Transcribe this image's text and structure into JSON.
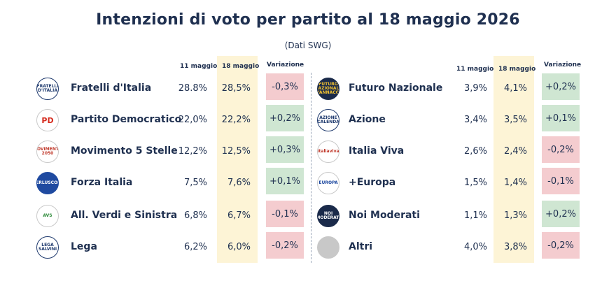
{
  "chart_data": {
    "type": "table",
    "title": "Intenzioni di voto per partito al 18 maggio 2026",
    "subtitle": "(Dati SWG)",
    "columns": [
      "11 maggio",
      "18 maggio",
      "Variazione"
    ],
    "colors": {
      "title": "#1f3050",
      "highlight": "#fdf4d6",
      "positive": "#cfe6d2",
      "negative": "#f4cccf"
    },
    "left": [
      {
        "logo_label": "FRATELLI D'ITALIA",
        "logo_icon": "fratelli-d-italia-logo-icon",
        "party": "Fratelli d'Italia",
        "prev": "28.8%",
        "curr": "28,5%",
        "change": "-0,3%",
        "sign": "neg"
      },
      {
        "logo_label": "PD",
        "logo_icon": "partito-democratico-logo-icon",
        "party": "Partito Democratico",
        "prev": "22,0%",
        "curr": "22,2%",
        "change": "+0,2%",
        "sign": "pos"
      },
      {
        "logo_label": "MOVIMENTO 2050",
        "logo_icon": "movimento-5-stelle-logo-icon",
        "party": "Movimento 5 Stelle",
        "prev": "12,2%",
        "curr": "12,5%",
        "change": "+0,3%",
        "sign": "pos"
      },
      {
        "logo_label": "BERLUSCONI",
        "logo_icon": "forza-italia-logo-icon",
        "party": "Forza Italia",
        "prev": "7,5%",
        "curr": "7,6%",
        "change": "+0,1%",
        "sign": "pos"
      },
      {
        "logo_label": "AVS",
        "logo_icon": "verdi-sinistra-logo-icon",
        "party": "All. Verdi e Sinistra",
        "prev": "6,8%",
        "curr": "6,7%",
        "change": "-0,1%",
        "sign": "neg"
      },
      {
        "logo_label": "LEGA SALVINI",
        "logo_icon": "lega-logo-icon",
        "party": "Lega",
        "prev": "6,2%",
        "curr": "6,0%",
        "change": "-0,2%",
        "sign": "neg"
      }
    ],
    "right": [
      {
        "logo_label": "FUTURO NAZIONALE VANNACCI",
        "logo_icon": "futuro-nazionale-logo-icon",
        "party": "Futuro Nazionale",
        "prev": "3,9%",
        "curr": "4,1%",
        "change": "+0,2%",
        "sign": "pos"
      },
      {
        "logo_label": "AZIONE CALENDA",
        "logo_icon": "azione-logo-icon",
        "party": "Azione",
        "prev": "3,4%",
        "curr": "3,5%",
        "change": "+0,1%",
        "sign": "pos"
      },
      {
        "logo_label": "italiaviva",
        "logo_icon": "italia-viva-logo-icon",
        "party": "Italia Viva",
        "prev": "2,6%",
        "curr": "2,4%",
        "change": "-0,2%",
        "sign": "neg"
      },
      {
        "logo_label": "EUROPA",
        "logo_icon": "piu-europa-logo-icon",
        "party": "+Europa",
        "prev": "1,5%",
        "curr": "1,4%",
        "change": "-0,1%",
        "sign": "neg"
      },
      {
        "logo_label": "NOI MODERATI",
        "logo_icon": "noi-moderati-logo-icon",
        "party": "Noi Moderati",
        "prev": "1,1%",
        "curr": "1,3%",
        "change": "+0,2%",
        "sign": "pos"
      },
      {
        "logo_label": "",
        "logo_icon": "altri-circle-icon",
        "party": "Altri",
        "prev": "4,0%",
        "curr": "3,8%",
        "change": "-0,2%",
        "sign": "neg"
      }
    ]
  }
}
